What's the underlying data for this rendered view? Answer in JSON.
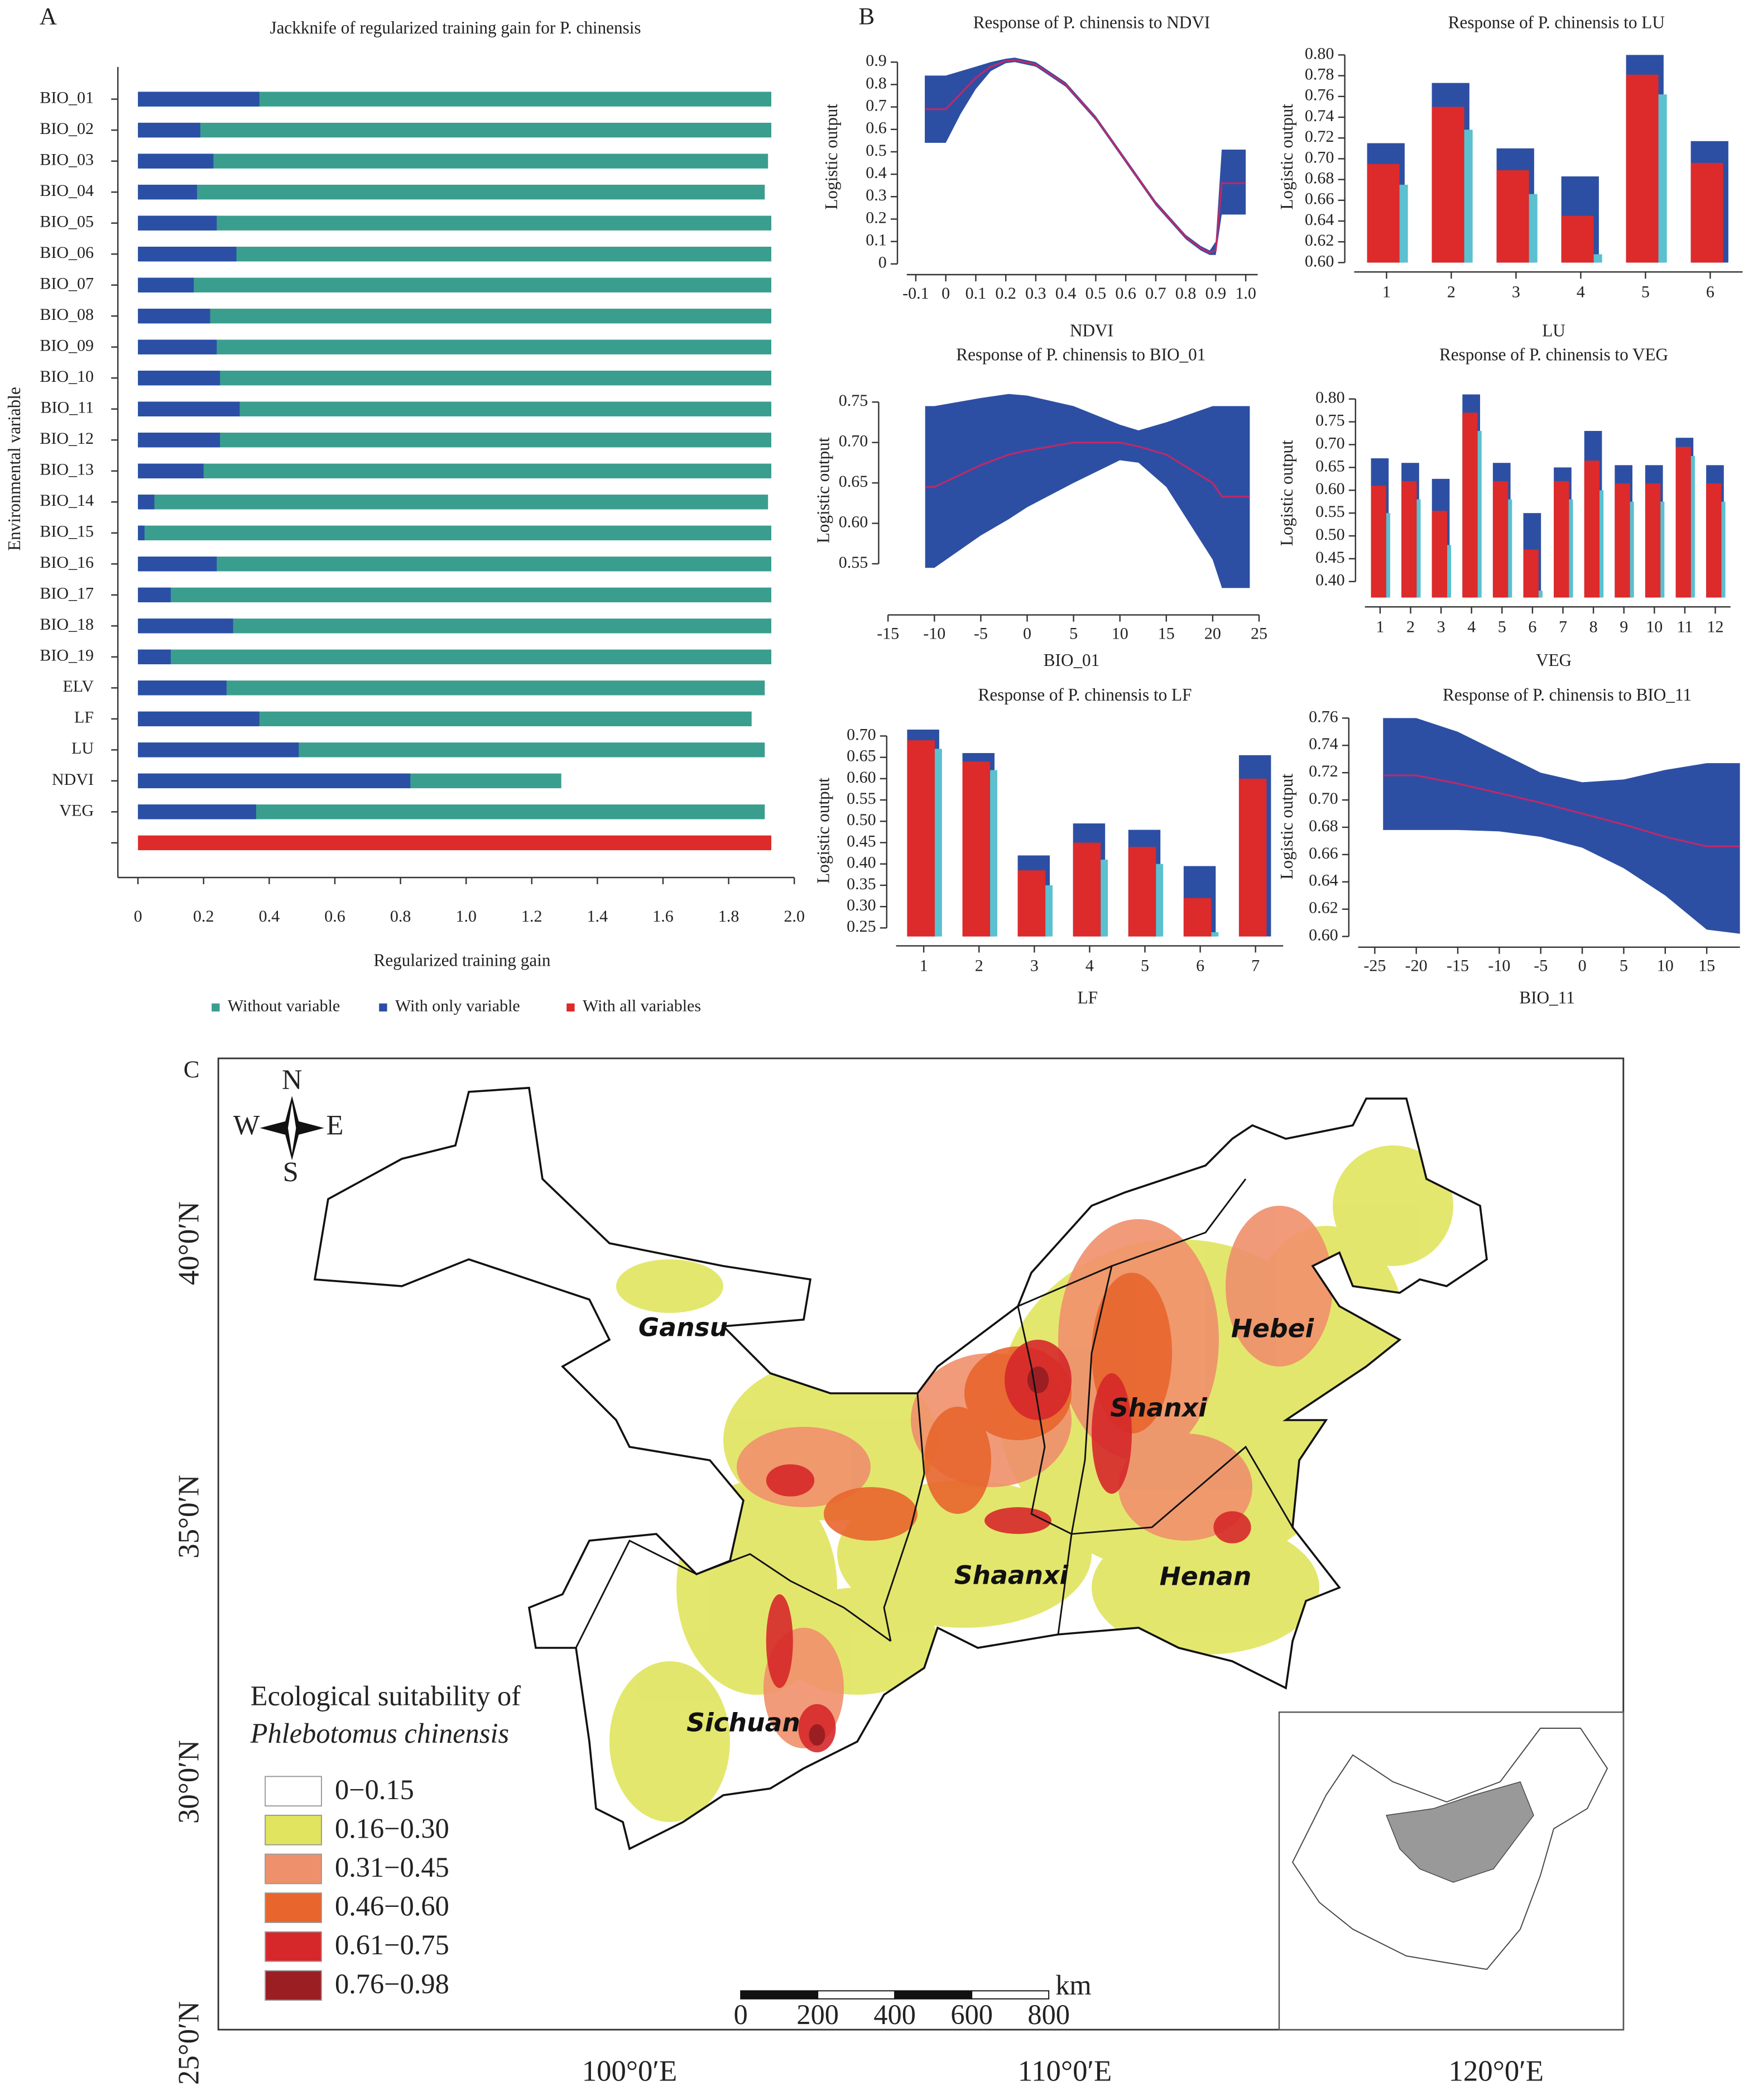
{
  "chart_data": [
    {
      "type": "bar",
      "horizontal": true,
      "panel": "A",
      "title": "Jackknife of regularized training gain for P. chinensis",
      "xlabel": "Regularized training gain",
      "ylabel": "Environmental variable",
      "categories": [
        "BIO_01",
        "BIO_02",
        "BIO_03",
        "BIO_04",
        "BIO_05",
        "BIO_06",
        "BIO_07",
        "BIO_08",
        "BIO_09",
        "BIO_10",
        "BIO_11",
        "BIO_12",
        "BIO_13",
        "BIO_14",
        "BIO_15",
        "BIO_16",
        "BIO_17",
        "BIO_18",
        "BIO_19",
        "ELV",
        "LF",
        "LU",
        "NDVI",
        "VEG",
        null
      ],
      "xlim": [
        0,
        2.0
      ],
      "xticks": [
        0,
        0.2,
        0.4,
        0.6,
        0.8,
        {
          "value": 1,
          "label": "1.0"
        },
        1.2,
        1.4,
        1.6,
        1.8,
        {
          "value": 2,
          "label": "2.0"
        }
      ],
      "legend": "bottom",
      "series": [
        {
          "name": "Without variable",
          "color": "#3a9e8f",
          "values": [
            1.93,
            1.93,
            1.92,
            1.91,
            1.93,
            1.93,
            1.93,
            1.93,
            1.93,
            1.93,
            1.93,
            1.93,
            1.93,
            1.92,
            1.93,
            1.93,
            1.93,
            1.93,
            1.93,
            1.91,
            1.87,
            1.91,
            1.29,
            1.91,
            null
          ]
        },
        {
          "name": "With only variable",
          "color": "#2b4fa5",
          "values": [
            0.37,
            0.19,
            0.23,
            0.18,
            0.24,
            0.3,
            0.17,
            0.22,
            0.24,
            0.25,
            0.31,
            0.25,
            0.2,
            0.05,
            0.02,
            0.24,
            0.1,
            0.29,
            0.1,
            0.27,
            0.37,
            0.49,
            0.83,
            0.36,
            null
          ]
        },
        {
          "name": "With all variables",
          "color": "#dd2a2a",
          "values": [
            null,
            null,
            null,
            null,
            null,
            null,
            null,
            null,
            null,
            null,
            null,
            null,
            null,
            null,
            null,
            null,
            null,
            null,
            null,
            null,
            null,
            null,
            null,
            null,
            1.93
          ]
        }
      ]
    },
    {
      "type": "line",
      "panel": "B",
      "title": "Response of P. chinensis to NDVI",
      "xlabel": "NDVI",
      "ylabel": "Logistic output",
      "color": "#c0286a",
      "band_color": "#2d4fa3",
      "x": [
        -0.07,
        0,
        0.05,
        0.1,
        0.15,
        0.2,
        0.23,
        0.3,
        0.4,
        0.5,
        0.6,
        0.7,
        0.8,
        0.85,
        0.88,
        0.9,
        0.92,
        1.0
      ],
      "values": [
        0.69,
        0.69,
        0.76,
        0.83,
        0.88,
        0.905,
        0.91,
        0.89,
        0.8,
        0.65,
        0.46,
        0.27,
        0.12,
        0.07,
        0.05,
        0.06,
        0.36,
        0.36
      ],
      "upper": [
        0.84,
        0.84,
        0.86,
        0.88,
        0.9,
        0.915,
        0.92,
        0.9,
        0.81,
        0.66,
        0.47,
        0.28,
        0.13,
        0.08,
        0.06,
        0.1,
        0.51,
        0.51
      ],
      "lower": [
        0.54,
        0.54,
        0.67,
        0.78,
        0.86,
        0.895,
        0.9,
        0.88,
        0.79,
        0.64,
        0.45,
        0.26,
        0.11,
        0.06,
        0.04,
        0.04,
        0.22,
        0.22
      ],
      "xlim": [
        -0.13,
        1.04
      ],
      "xticks": [
        -0.1,
        0,
        0.1,
        0.2,
        0.3,
        0.4,
        0.5,
        0.6,
        0.7,
        0.8,
        0.9,
        {
          "value": 1,
          "label": "1.0"
        }
      ],
      "ylim": [
        0,
        0.95
      ],
      "yticks": [
        0,
        0.1,
        0.2,
        0.3,
        0.4,
        0.5,
        0.6,
        0.7,
        0.8,
        0.9
      ]
    },
    {
      "type": "bar",
      "title": "Response of P. chinensis to LU",
      "xlabel": "LU",
      "ylabel": "Logistic output",
      "categories": [
        "1",
        "2",
        "3",
        "4",
        "5",
        "6"
      ],
      "series": [
        {
          "color": "#2d4fa3",
          "values": [
            0.715,
            0.773,
            0.71,
            0.683,
            0.8,
            0.717
          ]
        },
        {
          "color": "#dd2a2a",
          "values": [
            0.695,
            0.75,
            0.689,
            0.645,
            0.781,
            0.696
          ]
        },
        {
          "color": "#5bc0cf",
          "values": [
            0.675,
            0.728,
            0.666,
            0.608,
            0.762,
            null
          ]
        }
      ],
      "ylim": [
        0.6,
        0.8
      ],
      "yticks": [
        {
          "value": 0.6,
          "label": "0.60"
        },
        0.62,
        0.64,
        0.66,
        0.68,
        {
          "value": 0.7,
          "label": "0.70"
        },
        0.72,
        0.74,
        0.76,
        0.78,
        {
          "value": 0.8,
          "label": "0.80"
        }
      ]
    },
    {
      "type": "line",
      "title": "Response of P. chinensis to BIO_01",
      "xlabel": "BIO_01",
      "ylabel": "Logistic output",
      "color": "#c0286a",
      "band_color": "#2d4fa3",
      "x": [
        -11,
        -10,
        -5,
        -2,
        0,
        5,
        10,
        12,
        15,
        20,
        21,
        24
      ],
      "values": [
        0.645,
        0.645,
        0.672,
        0.685,
        0.69,
        0.7,
        0.7,
        0.695,
        0.685,
        0.65,
        0.633,
        0.633
      ],
      "upper": [
        0.745,
        0.745,
        0.755,
        0.76,
        0.758,
        0.745,
        0.722,
        0.715,
        0.725,
        0.745,
        0.745,
        0.745
      ],
      "lower": [
        0.545,
        0.545,
        0.585,
        0.605,
        0.62,
        0.65,
        0.678,
        0.675,
        0.645,
        0.555,
        0.52,
        0.52
      ],
      "xlim": [
        -15,
        25
      ],
      "xticks": [
        -15,
        -10,
        -5,
        0,
        5,
        10,
        15,
        20,
        25
      ],
      "ylim": [
        0.5,
        0.78
      ],
      "yticks": [
        0.55,
        {
          "value": 0.6,
          "label": "0.60"
        },
        0.65,
        {
          "value": 0.7,
          "label": "0.70"
        },
        0.75
      ]
    },
    {
      "type": "bar",
      "title": "Response of P. chinensis to VEG",
      "xlabel": "VEG",
      "ylabel": "Logistic output",
      "categories": [
        "1",
        "2",
        "3",
        "4",
        "5",
        "6",
        "7",
        "8",
        "9",
        "10",
        "11",
        "12"
      ],
      "series": [
        {
          "color": "#2d4fa3",
          "values": [
            0.67,
            0.66,
            0.625,
            0.81,
            0.66,
            0.55,
            0.65,
            0.73,
            0.655,
            0.655,
            0.715,
            0.655
          ]
        },
        {
          "color": "#dd2a2a",
          "values": [
            0.61,
            0.62,
            0.555,
            0.77,
            0.62,
            0.47,
            0.62,
            0.665,
            0.615,
            0.615,
            0.695,
            0.615
          ]
        },
        {
          "color": "#5bc0cf",
          "values": [
            0.55,
            0.58,
            0.48,
            0.73,
            0.58,
            0.38,
            0.58,
            0.6,
            0.575,
            0.575,
            0.675,
            0.575
          ]
        }
      ],
      "ylim": [
        0.365,
        0.82
      ],
      "yticks": [
        {
          "value": 0.4,
          "label": "0.40"
        },
        0.45,
        {
          "value": 0.5,
          "label": "0.50"
        },
        0.55,
        {
          "value": 0.6,
          "label": "0.60"
        },
        0.65,
        {
          "value": 0.7,
          "label": "0.70"
        },
        0.75,
        {
          "value": 0.8,
          "label": "0.80"
        }
      ]
    },
    {
      "type": "bar",
      "title": "Response of P. chinensis to LF",
      "xlabel": "LF",
      "ylabel": "Logistic output",
      "categories": [
        "1",
        "2",
        "3",
        "4",
        "5",
        "6",
        "7"
      ],
      "series": [
        {
          "color": "#2d4fa3",
          "values": [
            0.715,
            0.66,
            0.42,
            0.495,
            0.48,
            0.395,
            0.655
          ]
        },
        {
          "color": "#dd2a2a",
          "values": [
            0.69,
            0.64,
            0.385,
            0.45,
            0.44,
            0.32,
            0.6
          ]
        },
        {
          "color": "#5bc0cf",
          "values": [
            0.67,
            0.62,
            0.35,
            0.41,
            0.4,
            0.24,
            null
          ]
        }
      ],
      "ylim": [
        0.23,
        0.72
      ],
      "yticks": [
        0.25,
        {
          "value": 0.3,
          "label": "0.30"
        },
        0.35,
        {
          "value": 0.4,
          "label": "0.40"
        },
        0.45,
        {
          "value": 0.5,
          "label": "0.50"
        },
        0.55,
        {
          "value": 0.6,
          "label": "0.60"
        },
        0.65,
        {
          "value": 0.7,
          "label": "0.70"
        }
      ]
    },
    {
      "type": "line",
      "title": "Response of P. chinensis to BIO_11",
      "xlabel": "BIO_11",
      "ylabel": "Logistic output",
      "color": "#c0286a",
      "band_color": "#2d4fa3",
      "x": [
        -24,
        -20,
        -15,
        -10,
        -5,
        0,
        5,
        10,
        15,
        19
      ],
      "values": [
        0.718,
        0.718,
        0.712,
        0.705,
        0.698,
        0.69,
        0.682,
        0.673,
        0.666,
        0.666
      ],
      "upper": [
        0.76,
        0.76,
        0.75,
        0.735,
        0.72,
        0.713,
        0.715,
        0.722,
        0.727,
        0.727
      ],
      "lower": [
        0.678,
        0.678,
        0.678,
        0.677,
        0.673,
        0.665,
        0.65,
        0.63,
        0.605,
        0.602
      ],
      "xlim": [
        -27,
        19
      ],
      "xticks": [
        -25,
        -20,
        -15,
        -10,
        -5,
        0,
        5,
        10,
        15
      ],
      "ylim": [
        0.6,
        0.76
      ],
      "yticks": [
        {
          "value": 0.6,
          "label": "0.60"
        },
        0.62,
        0.64,
        0.66,
        0.68,
        {
          "value": 0.7,
          "label": "0.70"
        },
        0.72,
        0.74,
        0.76
      ]
    }
  ],
  "map": {
    "panel": "C",
    "compass": {
      "n": "N",
      "s": "S",
      "w": "W",
      "e": "E"
    },
    "regions": [
      "Gansu",
      "Hebei",
      "Shanxi",
      "Shaanxi",
      "Henan",
      "Sichuan"
    ],
    "legend": {
      "title": [
        "Ecological suitability of",
        "Phlebotomus chinensis"
      ],
      "items": [
        {
          "label": "0−0.15",
          "color": "#ffffff"
        },
        {
          "label": "0.16−0.30",
          "color": "#e0e45e"
        },
        {
          "label": "0.31−0.45",
          "color": "#ef906c"
        },
        {
          "label": "0.46−0.60",
          "color": "#e8652d"
        },
        {
          "label": "0.61−0.75",
          "color": "#d6282a"
        },
        {
          "label": "0.76−0.98",
          "color": "#9b1e23"
        }
      ]
    },
    "scale": {
      "unit": "km",
      "ticks": [
        0,
        200,
        400,
        600,
        800
      ]
    },
    "lat_labels": [
      "40°0′N",
      "35°0′N",
      "30°0′N",
      "25°0′N"
    ],
    "lon_labels": [
      "100°0′E",
      "110°0′E",
      "120°0′E"
    ]
  }
}
